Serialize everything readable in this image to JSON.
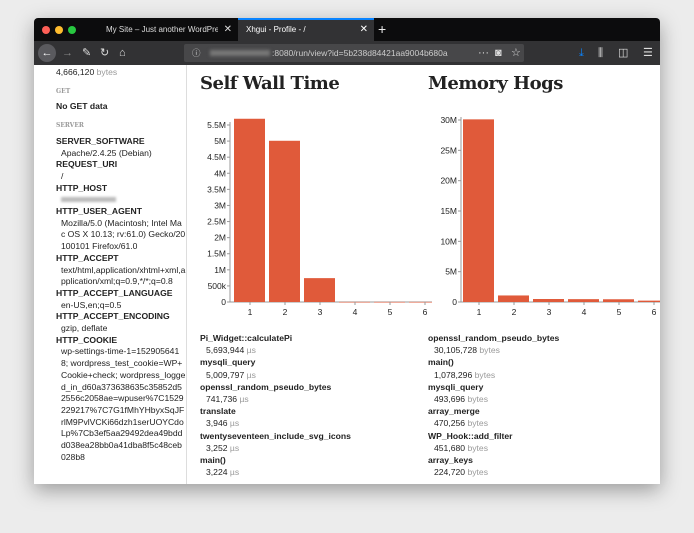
{
  "browser": {
    "tabs": [
      {
        "label": "My Site – Just another WordPress s",
        "active": false
      },
      {
        "label": "Xhgui - Profile - /",
        "active": true
      }
    ],
    "url": ":8080/run/view?id=5b238d84421aa9004b680a"
  },
  "sidebar": {
    "top_value": "4,666,120",
    "top_unit": "bytes",
    "get_heading": "GET",
    "get_empty": "No GET data",
    "server_heading": "SERVER",
    "server": [
      {
        "key": "SERVER_SOFTWARE",
        "value": "Apache/2.4.25 (Debian)"
      },
      {
        "key": "REQUEST_URI",
        "value": "/"
      },
      {
        "key": "HTTP_HOST",
        "value": ""
      },
      {
        "key": "HTTP_USER_AGENT",
        "value": "Mozilla/5.0 (Macintosh; Intel Mac OS X 10.13; rv:61.0) Gecko/20100101 Firefox/61.0"
      },
      {
        "key": "HTTP_ACCEPT",
        "value": "text/html,application/xhtml+xml,application/xml;q=0.9,*/*;q=0.8"
      },
      {
        "key": "HTTP_ACCEPT_LANGUAGE",
        "value": "en-US,en;q=0.5"
      },
      {
        "key": "HTTP_ACCEPT_ENCODING",
        "value": "gzip, deflate"
      },
      {
        "key": "HTTP_COOKIE",
        "value": "wp-settings-time-1=1529056418; wordpress_test_cookie=WP+Cookie+check; wordpress_logged_in_d60a373638635c35852d52556c2058ae=wpuser%7C1529229217%7C7G1fMhYHbyxSqJFrlM9PvlVCKi66dzh1serUOYCdoLp%7Cb3ef5aa29492dea49bddd038ea28bb0a41dba8f5c48ceb028b8"
      }
    ]
  },
  "wall": {
    "title": "Self Wall Time",
    "unit": "µs",
    "items": [
      {
        "name": "Pi_Widget::calculatePi",
        "value": "5,693,944"
      },
      {
        "name": "mysqli_query",
        "value": "5,009,797"
      },
      {
        "name": "openssl_random_pseudo_bytes",
        "value": "741,736"
      },
      {
        "name": "translate",
        "value": "3,946"
      },
      {
        "name": "twentyseventeen_include_svg_icons",
        "value": "3,252"
      },
      {
        "name": "main()",
        "value": "3,224"
      }
    ]
  },
  "memory": {
    "title": "Memory Hogs",
    "unit": "bytes",
    "items": [
      {
        "name": "openssl_random_pseudo_bytes",
        "value": "30,105,728"
      },
      {
        "name": "main()",
        "value": "1,078,296"
      },
      {
        "name": "mysqli_query",
        "value": "493,696"
      },
      {
        "name": "array_merge",
        "value": "470,256"
      },
      {
        "name": "WP_Hook::add_filter",
        "value": "451,680"
      },
      {
        "name": "array_keys",
        "value": "224,720"
      }
    ]
  },
  "chart_data": [
    {
      "type": "bar",
      "title": "Self Wall Time",
      "categories": [
        "1",
        "2",
        "3",
        "4",
        "5",
        "6"
      ],
      "values": [
        5693944,
        5009797,
        741736,
        3946,
        3252,
        3224
      ],
      "ylim": [
        0,
        5500000
      ],
      "yticks": [
        "0",
        "500k",
        "1M",
        "1.5M",
        "2M",
        "2.5M",
        "3M",
        "3.5M",
        "4M",
        "4.5M",
        "5M",
        "5.5M"
      ],
      "color": "#e05a3a"
    },
    {
      "type": "bar",
      "title": "Memory Hogs",
      "categories": [
        "1",
        "2",
        "3",
        "4",
        "5",
        "6"
      ],
      "values": [
        30105728,
        1078296,
        493696,
        470256,
        451680,
        224720
      ],
      "ylim": [
        0,
        30000000
      ],
      "yticks": [
        "0",
        "5M",
        "10M",
        "15M",
        "20M",
        "25M",
        "30M"
      ],
      "color": "#e05a3a"
    }
  ]
}
